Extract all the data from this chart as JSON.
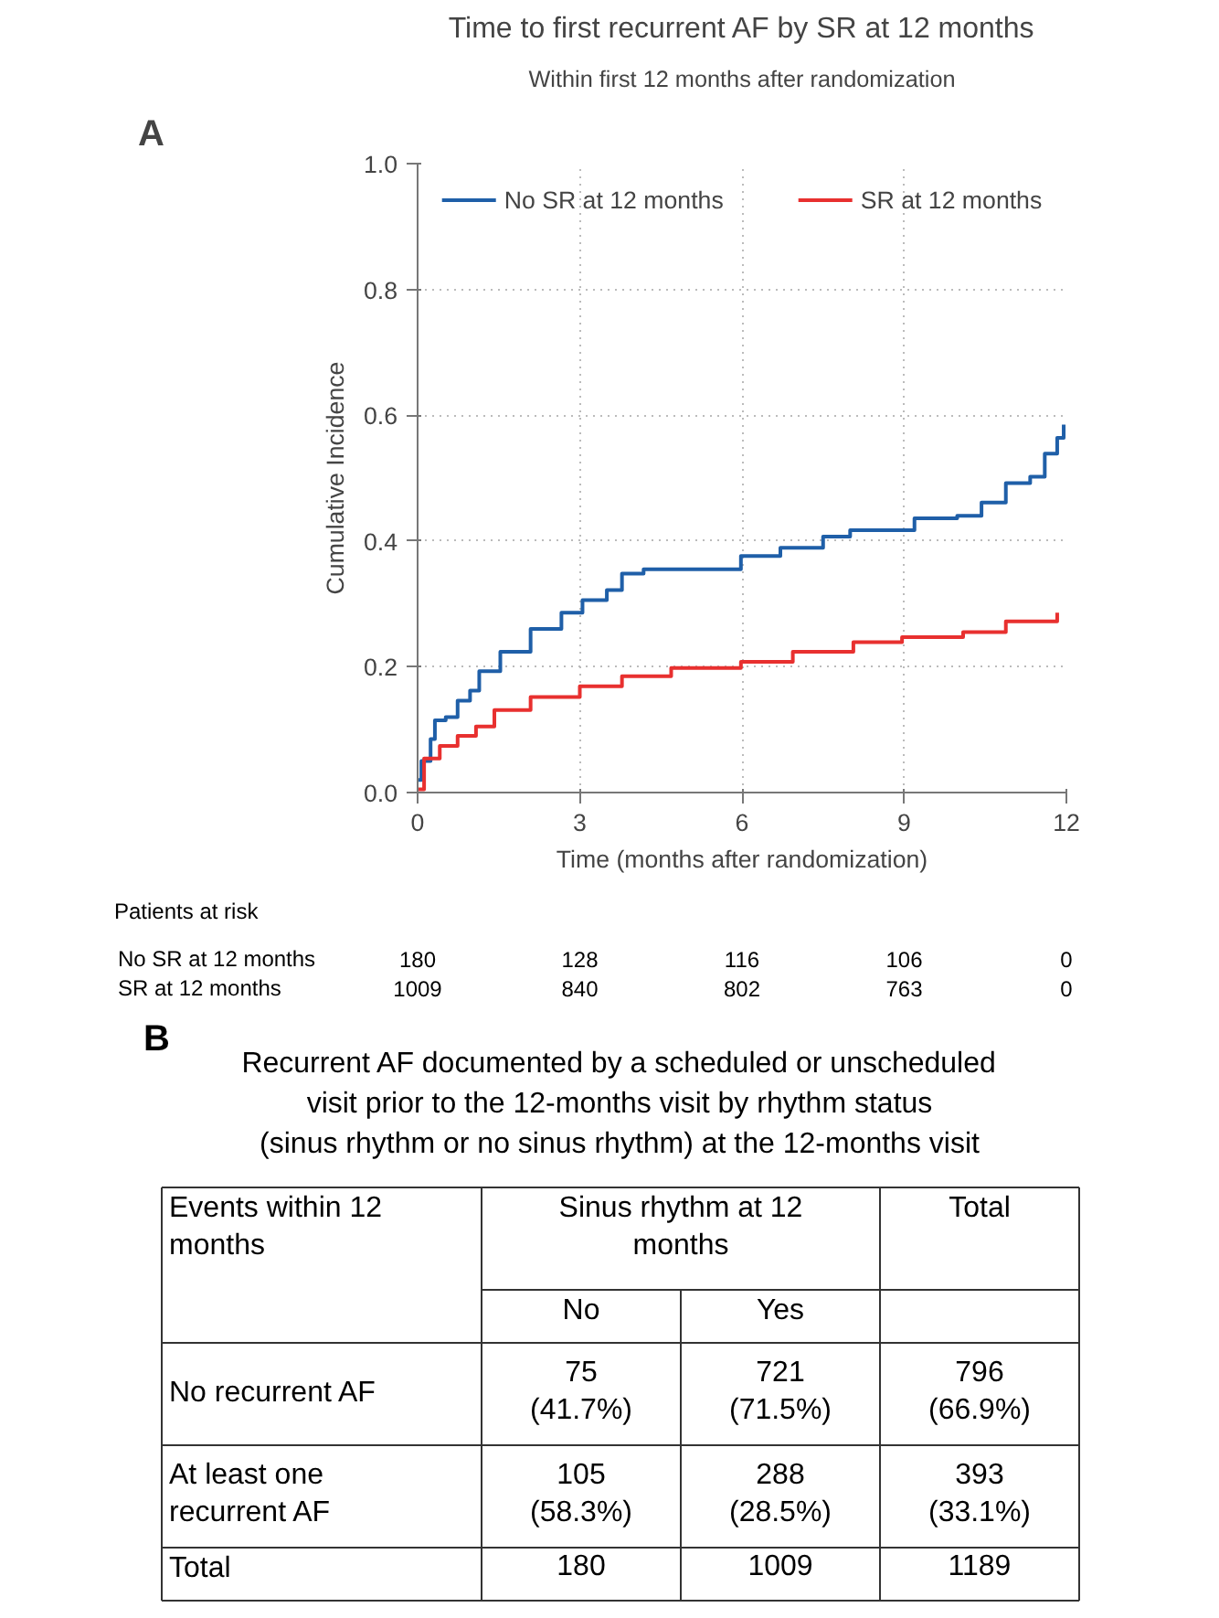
{
  "chart_data": [
    {
      "type": "step",
      "title": "Time to first recurrent AF by SR at 12 months",
      "subtitle": "Within first 12 months after randomization",
      "xlabel": "Time (months after randomization)",
      "ylabel": "Cumulative Incidence",
      "xlim": [
        0,
        12
      ],
      "ylim": [
        0,
        1
      ],
      "xticks": [
        0,
        3,
        6,
        9,
        12
      ],
      "yticks": [
        {
          "value": 0,
          "label": "0.0"
        },
        {
          "value": 0.2,
          "label": "0.2"
        },
        {
          "value": 0.4,
          "label": "0.4"
        },
        {
          "value": 0.6,
          "label": "0.6"
        },
        {
          "value": 0.8,
          "label": "0.8"
        },
        {
          "value": 1,
          "label": "1.0"
        }
      ],
      "grid": true,
      "legend": "top",
      "line_style": "solid",
      "series": [
        {
          "name": "No SR at 12 months",
          "color": "#1f5fa8",
          "x": [
            0,
            0.07,
            0.24,
            0.32,
            0.52,
            0.74,
            0.97,
            1.14,
            1.53,
            2.09,
            2.66,
            3.05,
            3.5,
            3.78,
            4.18,
            5.98,
            6.71,
            7.5,
            8.0,
            8.96,
            9.19,
            9.98,
            10.43,
            10.88,
            11.33,
            11.6,
            11.83,
            11.95
          ],
          "values": [
            0.02,
            0.05,
            0.085,
            0.115,
            0.12,
            0.146,
            0.162,
            0.193,
            0.224,
            0.26,
            0.286,
            0.306,
            0.322,
            0.348,
            0.355,
            0.376,
            0.389,
            0.407,
            0.417,
            0.417,
            0.436,
            0.44,
            0.461,
            0.492,
            0.502,
            0.539,
            0.564,
            0.585
          ]
        },
        {
          "name": "SR at 12 months",
          "color": "#e8302f",
          "x": [
            0,
            0.12,
            0.41,
            0.74,
            1.08,
            1.42,
            2.09,
            3.0,
            3.78,
            4.69,
            5.98,
            6.94,
            8.06,
            8.96,
            10.09,
            10.88,
            11.83
          ],
          "values": [
            0.005,
            0.054,
            0.074,
            0.09,
            0.105,
            0.131,
            0.152,
            0.169,
            0.185,
            0.198,
            0.208,
            0.224,
            0.239,
            0.247,
            0.255,
            0.272,
            0.286
          ]
        }
      ],
      "annotations": [
        "A",
        "Patients at risk",
        "No SR at 12 months",
        "180",
        "128",
        "116",
        "106",
        "0",
        "SR at 12 months",
        "1009",
        "840",
        "802",
        "763",
        "0"
      ]
    },
    {
      "type": "other",
      "title": "Recurrent AF documented by a scheduled or unscheduled\nvisit prior to the 12-months visit by rhythm status\n(sinus rhythm or no sinus rhythm) at the 12-months visit",
      "annotations": [
        "B",
        "Events within 12\nmonths",
        "Sinus rhythm at 12\nmonths",
        "Total",
        "No",
        "Yes",
        "No recurrent AF",
        "75\n(41.7%)",
        "721\n(71.5%)",
        "796\n(66.9%)",
        "At least one\nrecurrent AF",
        "105\n(58.3%)",
        "288\n(28.5%)",
        "393\n(33.1%)",
        "Total",
        "180",
        "1009",
        "1189"
      ]
    }
  ]
}
